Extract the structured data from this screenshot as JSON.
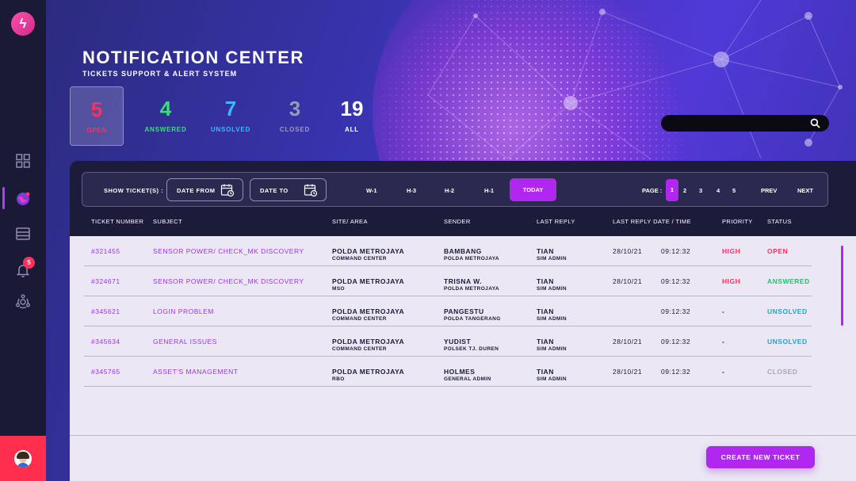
{
  "header": {
    "title": "NOTIFICATION CENTER",
    "subtitle": "TICKETS SUPPORT & ALERT SYSTEM"
  },
  "stats": [
    {
      "value": "5",
      "label": "OPEN",
      "color": "#ff2f5e"
    },
    {
      "value": "4",
      "label": "ANSWERED",
      "color": "#38e07a"
    },
    {
      "value": "7",
      "label": "UNSOLVED",
      "color": "#3ab7ff"
    },
    {
      "value": "3",
      "label": "CLOSED",
      "color": "#9a9ab8"
    },
    {
      "value": "19",
      "label": "ALL",
      "color": "#ffffff"
    }
  ],
  "search": {
    "placeholder": ""
  },
  "sidebar": {
    "notification_count": "5",
    "icons": [
      "dashboard-icon",
      "globe-icon",
      "server-icon",
      "bell-icon",
      "network-icon"
    ]
  },
  "toolbar": {
    "show_label": "SHOW TICKET(S) :",
    "date_from": "DATE FROM",
    "date_to": "DATE TO",
    "ranges": [
      "W-1",
      "H-3",
      "H-2",
      "H-1",
      "TODAY"
    ],
    "page_label": "PAGE :",
    "pages": [
      "1",
      "2",
      "3",
      "4",
      "5"
    ],
    "prev": "PREV",
    "next": "NEXT"
  },
  "table": {
    "columns": [
      "TICKET NUMBER",
      "SUBJECT",
      "SITE/ AREA",
      "SENDER",
      "LAST REPLY",
      "LAST REPLY DATE / TIME",
      "PRIORITY",
      "STATUS"
    ],
    "rows": [
      {
        "id": "#321455",
        "subject": "SENSOR POWER/ CHECK_MK DISCOVERY",
        "site": "POLDA METROJAYA",
        "site_sub": "COMMAND CENTER",
        "sender": "BAMBANG",
        "sender_sub": "POLDA METROJAYA",
        "reply": "TIAN",
        "reply_sub": "SIM ADMIN",
        "date": "28/10/21",
        "time": "09:12:32",
        "priority": "HIGH",
        "status": "OPEN"
      },
      {
        "id": "#324671",
        "subject": "SENSOR POWER/ CHECK_MK DISCOVERY",
        "site": "POLDA METROJAYA",
        "site_sub": "MSO",
        "sender": "TRISNA W.",
        "sender_sub": "POLDA METROJAYA",
        "reply": "TIAN",
        "reply_sub": "SIM ADMIN",
        "date": "28/10/21",
        "time": "09:12:32",
        "priority": "HIGH",
        "status": "ANSWERED"
      },
      {
        "id": "#345621",
        "subject": "LOGIN PROBLEM",
        "site": "POLDA METROJAYA",
        "site_sub": "COMMAND CENTER",
        "sender": "PANGESTU",
        "sender_sub": "POLDA TANGERANG",
        "reply": "TIAN",
        "reply_sub": "SIM ADMIN",
        "date": "",
        "time": "09:12:32",
        "priority": "-",
        "status": "UNSOLVED"
      },
      {
        "id": "#345634",
        "subject": "GENERAL ISSUES",
        "site": "POLDA METROJAYA",
        "site_sub": "COMMAND CENTER",
        "sender": "YUDIST",
        "sender_sub": "POLSEK TJ. DUREN",
        "reply": "TIAN",
        "reply_sub": "SIM ADMIN",
        "date": "28/10/21",
        "time": "09:12:32",
        "priority": "-",
        "status": "UNSOLVED"
      },
      {
        "id": "#345765",
        "subject": "ASSET'S MANAGEMENT",
        "site": "POLDA METROJAYA",
        "site_sub": "RBO",
        "sender": "HOLMES",
        "sender_sub": "GENERAL ADMIN",
        "reply": "TIAN",
        "reply_sub": "SIM ADMIN",
        "date": "28/10/21",
        "time": "09:12:32",
        "priority": "-",
        "status": "CLOSED"
      }
    ]
  },
  "colors": {
    "accent": "#b028ef",
    "high": "#ff2f5e",
    "open": "#ff2f5e",
    "answered": "#1fc46a",
    "unsolved": "#1aa8c4",
    "closed": "#a8a6b8"
  },
  "create_button": "CREATE NEW TICKET"
}
